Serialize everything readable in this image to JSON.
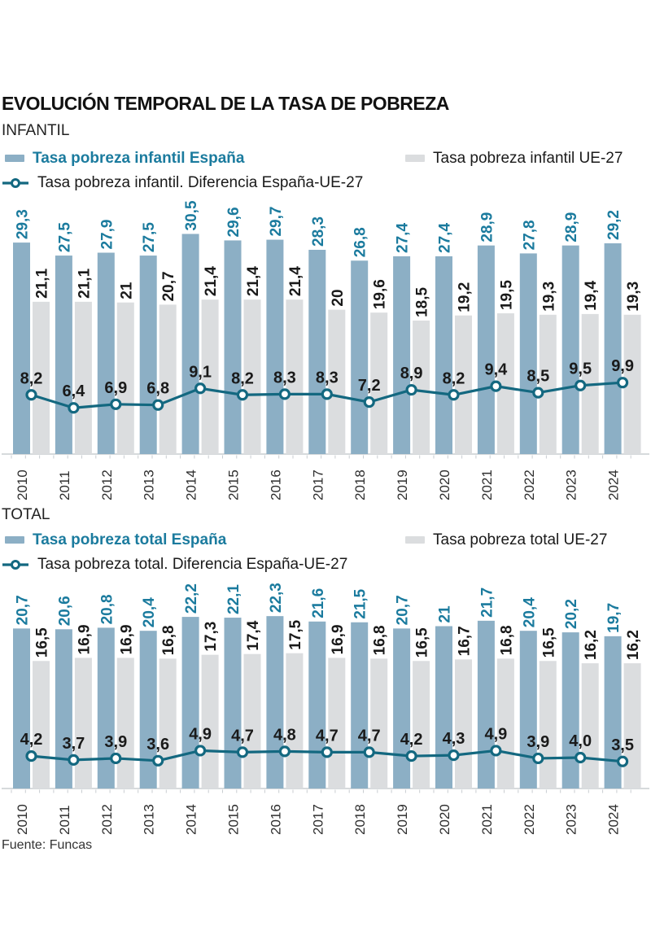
{
  "title": "EVOLUCIÓN TEMPORAL DE LA TASA DE POBREZA",
  "source": "Fuente: Funcas",
  "colors": {
    "bar_espana": "#8CAFC5",
    "bar_ue": "#DBDDDF",
    "accent_text": "#1B7B9E",
    "line": "#136880",
    "text_dark": "#1A1A1A",
    "text_year": "#2E2E2E",
    "axis": "#C9CDD1"
  },
  "sections": [
    {
      "label": "INFANTIL",
      "legend": {
        "spain": "Tasa pobreza infantil España",
        "eu": "Tasa pobreza infantil UE-27",
        "diff": "Tasa pobreza infantil. Diferencia España-UE-27"
      }
    },
    {
      "label": "TOTAL",
      "legend": {
        "spain": "Tasa pobreza total España",
        "eu": "Tasa pobreza total UE-27",
        "diff": "Tasa pobreza total. Diferencia España-UE-27"
      }
    }
  ],
  "chart_data": [
    {
      "type": "bar",
      "title": "INFANTIL",
      "xlabel": "",
      "ylabel": "",
      "ylim": [
        0,
        30.5
      ],
      "grid": false,
      "legend_position": "top",
      "categories": [
        "2010",
        "2011",
        "2012",
        "2013",
        "2014",
        "2015",
        "2016",
        "2017",
        "2018",
        "2019",
        "2020",
        "2021",
        "2022",
        "2023",
        "2024"
      ],
      "series": [
        {
          "name": "Tasa pobreza infantil España",
          "type": "bar",
          "color": "#8CAFC5",
          "values": [
            29.3,
            27.5,
            27.9,
            27.5,
            30.5,
            29.6,
            29.7,
            28.3,
            26.8,
            27.4,
            27.4,
            28.9,
            27.8,
            28.9,
            29.2
          ],
          "labels": [
            "29,3",
            "27,5",
            "27,9",
            "27,5",
            "30,5",
            "29,6",
            "29,7",
            "28,3",
            "26,8",
            "27,4",
            "27,4",
            "28,9",
            "27,8",
            "28,9",
            "29,2"
          ]
        },
        {
          "name": "Tasa pobreza infantil UE-27",
          "type": "bar",
          "color": "#DBDDDF",
          "values": [
            21.1,
            21.1,
            21,
            20.7,
            21.4,
            21.4,
            21.4,
            20,
            19.6,
            18.5,
            19.2,
            19.5,
            19.3,
            19.4,
            19.3
          ],
          "labels": [
            "21,1",
            "21,1",
            "21",
            "20,7",
            "21,4",
            "21,4",
            "21,4",
            "20",
            "19,6",
            "18,5",
            "19,2",
            "19,5",
            "19,3",
            "19,4",
            "19,3"
          ]
        },
        {
          "name": "Tasa pobreza infantil. Diferencia España-UE-27",
          "type": "line",
          "color": "#136880",
          "values": [
            8.2,
            6.4,
            6.9,
            6.8,
            9.1,
            8.2,
            8.3,
            8.3,
            7.2,
            8.9,
            8.2,
            9.4,
            8.5,
            9.5,
            9.9
          ],
          "labels": [
            "8,2",
            "6,4",
            "6,9",
            "6,8",
            "9,1",
            "8,2",
            "8,3",
            "8,3",
            "7,2",
            "8,9",
            "8,2",
            "9,4",
            "8,5",
            "9,5",
            "9,9"
          ]
        }
      ]
    },
    {
      "type": "bar",
      "title": "TOTAL",
      "xlabel": "",
      "ylabel": "",
      "ylim": [
        0,
        22.3
      ],
      "grid": false,
      "legend_position": "top",
      "categories": [
        "2010",
        "2011",
        "2012",
        "2013",
        "2014",
        "2015",
        "2016",
        "2017",
        "2018",
        "2019",
        "2020",
        "2021",
        "2022",
        "2023",
        "2024"
      ],
      "series": [
        {
          "name": "Tasa pobreza total España",
          "type": "bar",
          "color": "#8CAFC5",
          "values": [
            20.7,
            20.6,
            20.8,
            20.4,
            22.2,
            22.1,
            22.3,
            21.6,
            21.5,
            20.7,
            21,
            21.7,
            20.4,
            20.2,
            19.7
          ],
          "labels": [
            "20,7",
            "20,6",
            "20,8",
            "20,4",
            "22,2",
            "22,1",
            "22,3",
            "21,6",
            "21,5",
            "20,7",
            "21",
            "21,7",
            "20,4",
            "20,2",
            "19,7"
          ]
        },
        {
          "name": "Tasa pobreza total UE-27",
          "type": "bar",
          "color": "#DBDDDF",
          "values": [
            16.5,
            16.9,
            16.9,
            16.8,
            17.3,
            17.4,
            17.5,
            16.9,
            16.8,
            16.5,
            16.7,
            16.8,
            16.5,
            16.2,
            16.2
          ],
          "labels": [
            "16,5",
            "16,9",
            "16,9",
            "16,8",
            "17,3",
            "17,4",
            "17,5",
            "16,9",
            "16,8",
            "16,5",
            "16,7",
            "16,8",
            "16,5",
            "16,2",
            "16,2"
          ]
        },
        {
          "name": "Tasa pobreza total. Diferencia España-UE-27",
          "type": "line",
          "color": "#136880",
          "values": [
            4.2,
            3.7,
            3.9,
            3.6,
            4.9,
            4.7,
            4.8,
            4.7,
            4.7,
            4.2,
            4.3,
            4.9,
            3.9,
            4.0,
            3.5
          ],
          "labels": [
            "4,2",
            "3,7",
            "3,9",
            "3,6",
            "4,9",
            "4,7",
            "4,8",
            "4,7",
            "4,7",
            "4,2",
            "4,3",
            "4,9",
            "3,9",
            "4,0",
            "3,5"
          ]
        }
      ]
    }
  ]
}
